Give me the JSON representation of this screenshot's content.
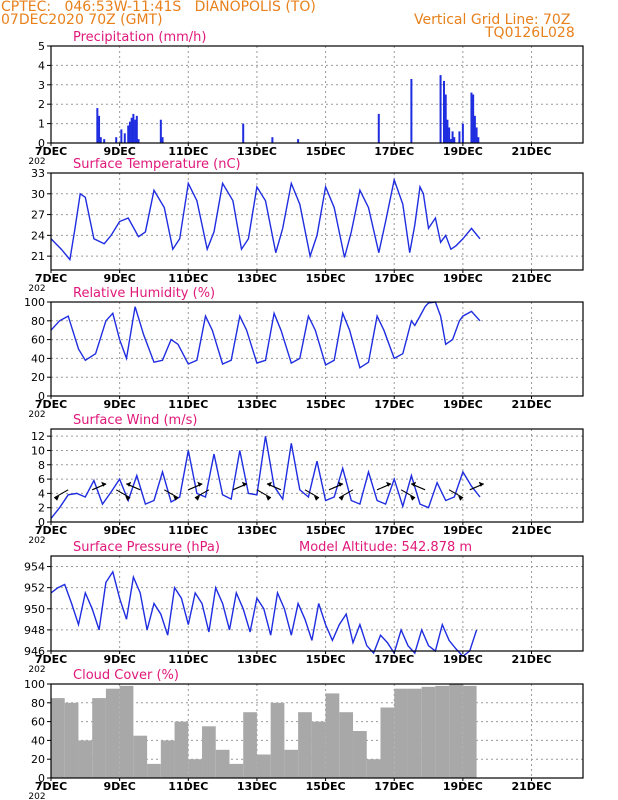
{
  "header": {
    "line1_left": "CPTEC:   046:53W-11:41S   DIANOPOLIS (TO)",
    "line2_left": "07DEC2020 70Z (GMT)",
    "line1_right": "Vertical Grid Line: 70Z",
    "line2_right": "TQ0126L028"
  },
  "colors": {
    "header": "#e8801c",
    "title": "#e0187a",
    "series": "#1f2de0",
    "cloud": "#a8a8a8",
    "grid": "#9a9a9a"
  },
  "x_labels": [
    "7DEC",
    "9DEC",
    "11DEC",
    "13DEC",
    "15DEC",
    "17DEC",
    "19DEC",
    "21DEC"
  ],
  "year_fragment": "202",
  "chart_data": [
    {
      "type": "bar",
      "title": "Precipitation (mm/h)",
      "ylim": [
        0,
        5
      ],
      "yticks": [
        0,
        1,
        2,
        3,
        4,
        5
      ],
      "x": [
        1.35,
        1.4,
        1.45,
        1.55,
        1.9,
        2.05,
        2.15,
        2.25,
        2.3,
        2.35,
        2.4,
        2.45,
        2.5,
        2.55,
        3.2,
        3.25,
        5.6,
        6.45,
        7.2,
        9.55,
        10.5,
        11.35,
        11.45,
        11.5,
        11.55,
        11.6,
        11.65,
        11.7,
        11.75,
        11.9,
        12.0,
        12.25,
        12.3,
        12.35,
        12.4,
        12.45
      ],
      "values": [
        1.8,
        1.4,
        0.3,
        0.2,
        0.3,
        0.7,
        0.5,
        0.9,
        1.1,
        1.3,
        1.5,
        1.2,
        1.4,
        0.2,
        1.2,
        0.3,
        1.0,
        0.3,
        0.2,
        1.5,
        3.3,
        3.5,
        3.2,
        2.5,
        1.2,
        0.8,
        0.2,
        0.6,
        0.3,
        0.6,
        1.0,
        2.6,
        2.5,
        1.4,
        0.8,
        0.3
      ]
    },
    {
      "type": "line",
      "title": "Surface Temperature (nC)",
      "ylim": [
        19,
        33
      ],
      "yticks": [
        21,
        24,
        27,
        30,
        33
      ],
      "x": [
        0,
        0.3,
        0.55,
        0.7,
        0.85,
        1.0,
        1.25,
        1.55,
        1.75,
        2.0,
        2.25,
        2.55,
        2.75,
        3.0,
        3.3,
        3.55,
        3.75,
        4.0,
        4.25,
        4.55,
        4.75,
        5.0,
        5.3,
        5.55,
        5.75,
        6.0,
        6.25,
        6.55,
        6.75,
        7.0,
        7.25,
        7.55,
        7.75,
        8.0,
        8.25,
        8.55,
        8.75,
        9.0,
        9.25,
        9.55,
        9.75,
        10.0,
        10.25,
        10.45,
        10.6,
        10.75,
        10.85,
        11.0,
        11.2,
        11.35,
        11.5,
        11.65,
        11.8,
        12.0,
        12.25,
        12.5
      ],
      "values": [
        23.5,
        22,
        20.5,
        25,
        30,
        29.5,
        23.5,
        22.8,
        24,
        26,
        26.5,
        23.8,
        24.5,
        30.5,
        28,
        22,
        23.5,
        31.5,
        29,
        22,
        24.5,
        31.5,
        29,
        22,
        23.5,
        31,
        29,
        21.5,
        25,
        31.5,
        28.5,
        21,
        24,
        31,
        28,
        20.8,
        24.5,
        30.5,
        28,
        21.5,
        26,
        32,
        28.5,
        21.5,
        25.5,
        31,
        30,
        25,
        26.5,
        23,
        24,
        22,
        22.5,
        23.5,
        25,
        23.5
      ]
    },
    {
      "type": "line",
      "title": "Relative Humidity (%)",
      "ylim": [
        0,
        100
      ],
      "yticks": [
        0,
        20,
        40,
        60,
        80,
        100
      ],
      "x": [
        0,
        0.25,
        0.5,
        0.8,
        1.0,
        1.3,
        1.6,
        1.8,
        2.0,
        2.2,
        2.45,
        2.7,
        3.0,
        3.25,
        3.5,
        3.7,
        4.0,
        4.25,
        4.5,
        4.7,
        5.0,
        5.25,
        5.5,
        5.7,
        6.0,
        6.25,
        6.5,
        6.7,
        7.0,
        7.25,
        7.5,
        7.7,
        8.0,
        8.25,
        8.5,
        8.7,
        9.0,
        9.25,
        9.5,
        9.7,
        10.0,
        10.25,
        10.5,
        10.6,
        10.75,
        10.9,
        11.0,
        11.2,
        11.35,
        11.5,
        11.7,
        11.9,
        12.0,
        12.25,
        12.5
      ],
      "values": [
        70,
        80,
        85,
        50,
        38,
        45,
        80,
        88,
        60,
        40,
        95,
        65,
        36,
        38,
        60,
        55,
        34,
        38,
        85,
        70,
        34,
        38,
        85,
        70,
        35,
        38,
        88,
        70,
        35,
        40,
        85,
        70,
        33,
        38,
        88,
        70,
        30,
        36,
        85,
        70,
        40,
        45,
        80,
        75,
        85,
        95,
        99,
        100,
        85,
        55,
        60,
        80,
        85,
        90,
        80
      ]
    },
    {
      "type": "line",
      "title": "Surface Wind (m/s)",
      "ylim": [
        0,
        13
      ],
      "yticks": [
        0,
        2,
        4,
        6,
        8,
        10,
        12
      ],
      "x": [
        0,
        0.25,
        0.5,
        0.75,
        1.0,
        1.25,
        1.5,
        1.75,
        2.0,
        2.25,
        2.5,
        2.75,
        3.0,
        3.25,
        3.5,
        3.75,
        4.0,
        4.25,
        4.5,
        4.75,
        5.0,
        5.25,
        5.5,
        5.75,
        6.0,
        6.25,
        6.5,
        6.75,
        7.0,
        7.25,
        7.5,
        7.75,
        8.0,
        8.25,
        8.5,
        8.75,
        9.0,
        9.25,
        9.5,
        9.75,
        10.0,
        10.25,
        10.5,
        10.75,
        11.0,
        11.25,
        11.5,
        11.75,
        12.0,
        12.25,
        12.5
      ],
      "values": [
        0.5,
        2.0,
        3.8,
        4.0,
        3.5,
        5.8,
        2.5,
        4.2,
        6.0,
        3.0,
        6.5,
        2.5,
        3.0,
        7.0,
        2.8,
        3.5,
        10.0,
        4.0,
        3.5,
        9.5,
        3.8,
        3.2,
        10.0,
        4.0,
        3.8,
        12.0,
        5.0,
        3.2,
        11.0,
        4.5,
        3.5,
        8.5,
        3.0,
        3.5,
        7.5,
        3.0,
        2.5,
        7.0,
        3.0,
        2.5,
        6.0,
        2.2,
        6.5,
        2.5,
        2.0,
        5.5,
        3.0,
        3.5,
        7.0,
        5.0,
        3.5
      ],
      "arrows_at": [
        0.5,
        1.2,
        1.9,
        2.6,
        3.3,
        4.0,
        4.6,
        5.3,
        6.0,
        6.7,
        7.4,
        8.1,
        8.8,
        9.5,
        10.2,
        10.9,
        11.6,
        12.2
      ]
    },
    {
      "type": "line",
      "title": "Surface Pressure (hPa)",
      "subtitle": "Model Altitude: 542.878 m",
      "ylim": [
        946,
        955
      ],
      "yticks": [
        946,
        948,
        950,
        952,
        954
      ],
      "x": [
        0,
        0.2,
        0.4,
        0.6,
        0.8,
        1.0,
        1.2,
        1.4,
        1.6,
        1.8,
        2.0,
        2.2,
        2.4,
        2.6,
        2.8,
        3.0,
        3.2,
        3.4,
        3.6,
        3.8,
        4.0,
        4.2,
        4.4,
        4.6,
        4.8,
        5.0,
        5.2,
        5.4,
        5.6,
        5.8,
        6.0,
        6.2,
        6.4,
        6.6,
        6.8,
        7.0,
        7.2,
        7.4,
        7.6,
        7.8,
        8.0,
        8.2,
        8.4,
        8.6,
        8.8,
        9.0,
        9.2,
        9.4,
        9.6,
        9.8,
        10.0,
        10.2,
        10.4,
        10.6,
        10.8,
        11.0,
        11.2,
        11.4,
        11.6,
        11.8,
        12.0,
        12.2,
        12.4
      ],
      "values": [
        951.5,
        952.0,
        952.3,
        950.5,
        948.5,
        951.5,
        950.0,
        948.0,
        952.5,
        953.5,
        951.0,
        949.0,
        953.0,
        951.5,
        948.0,
        950.5,
        949.5,
        947.5,
        952.0,
        951.0,
        948.5,
        951.5,
        950.5,
        947.8,
        952.0,
        950.5,
        948.0,
        951.5,
        950.0,
        947.8,
        951.0,
        950.0,
        947.5,
        951.5,
        950.0,
        947.5,
        950.5,
        949.0,
        947.0,
        950.5,
        948.5,
        947.0,
        948.5,
        949.5,
        946.8,
        948.5,
        946.5,
        945.8,
        947.5,
        946.8,
        945.8,
        948.0,
        946.5,
        945.8,
        948.0,
        946.5,
        946.0,
        948.5,
        947.0,
        946.2,
        945.5,
        946.0,
        948.0
      ]
    },
    {
      "type": "bar",
      "title": "Cloud Cover (%)",
      "ylim": [
        0,
        100
      ],
      "yticks": [
        0,
        20,
        40,
        60,
        80,
        100
      ],
      "x": [
        0.2,
        0.6,
        1.0,
        1.4,
        1.8,
        2.2,
        2.6,
        3.0,
        3.4,
        3.8,
        4.2,
        4.6,
        5.0,
        5.4,
        5.8,
        6.2,
        6.6,
        7.0,
        7.4,
        7.8,
        8.2,
        8.6,
        9.0,
        9.4,
        9.8,
        10.2,
        10.6,
        11.0,
        11.4,
        11.8,
        12.2
      ],
      "values": [
        85,
        80,
        40,
        85,
        95,
        98,
        45,
        15,
        40,
        60,
        20,
        55,
        30,
        15,
        70,
        25,
        80,
        30,
        70,
        60,
        90,
        70,
        50,
        20,
        75,
        95,
        95,
        97,
        98,
        100,
        98
      ]
    }
  ]
}
